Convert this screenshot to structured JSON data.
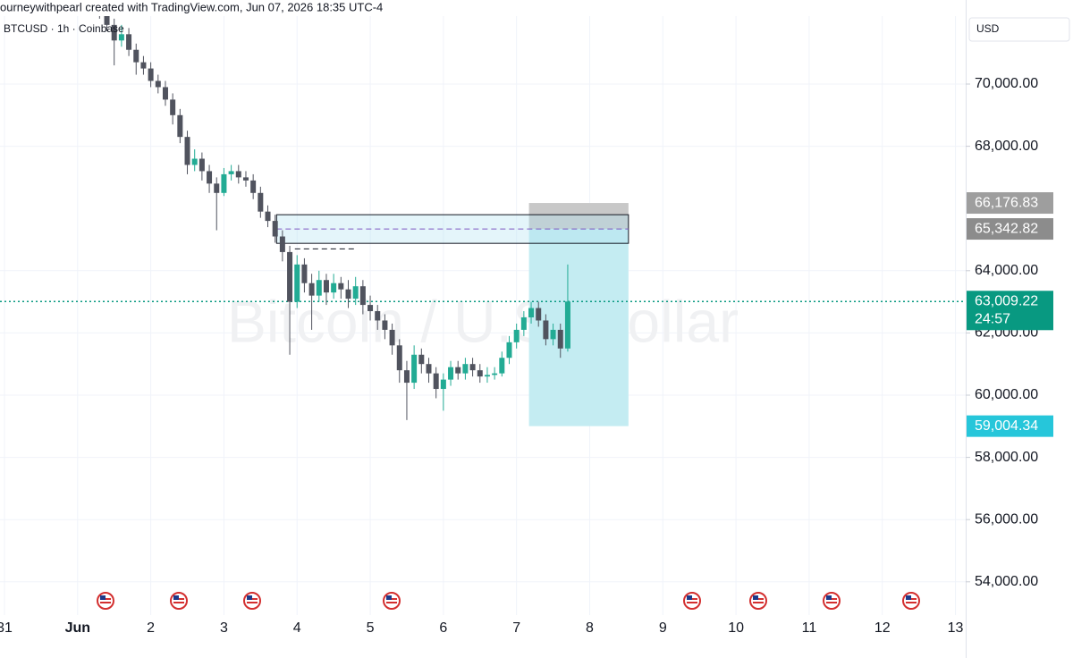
{
  "chart_data": {
    "type": "candlestick",
    "header": "ourneywithpearl created with TradingView.com, Jun 07, 2026 18:35 UTC-4",
    "title": "BTCUSD · 1h · Coinbase",
    "watermark": "Bitcoin / U.S. Dollar",
    "currency": "USD",
    "up_color": "#22ab94",
    "down_color": "#50535e",
    "grid": true,
    "xlim": [
      -0.061,
      13.14
    ],
    "ylim": [
      52931,
      72701
    ],
    "xticks": [
      {
        "value": 0,
        "label": "31"
      },
      {
        "value": 1,
        "label": "Jun"
      },
      2,
      3,
      4,
      5,
      6,
      7,
      8,
      9,
      10,
      11,
      12,
      13
    ],
    "yticks": [
      {
        "value": 54000,
        "label": "54,000.00"
      },
      {
        "value": 56000,
        "label": "56,000.00"
      },
      {
        "value": 58000,
        "label": "58,000.00"
      },
      {
        "value": 60000,
        "label": "60,000.00"
      },
      {
        "value": 62000,
        "label": "62,000.00"
      },
      {
        "value": 64000,
        "label": "64,000.00"
      },
      {
        "value": 68000,
        "label": "68,000.00"
      },
      {
        "value": 70000,
        "label": "70,000.00"
      }
    ],
    "x": [
      1.3,
      1.4,
      1.5,
      1.6,
      1.7,
      1.8,
      1.9,
      2.0,
      2.1,
      2.2,
      2.3,
      2.4,
      2.5,
      2.6,
      2.7,
      2.8,
      2.9,
      3.0,
      3.1,
      3.2,
      3.3,
      3.4,
      3.5,
      3.6,
      3.7,
      3.8,
      3.9,
      4.0,
      4.1,
      4.2,
      4.3,
      4.4,
      4.5,
      4.6,
      4.7,
      4.8,
      4.9,
      5.0,
      5.1,
      5.2,
      5.3,
      5.4,
      5.5,
      5.6,
      5.7,
      5.8,
      5.9,
      6.0,
      6.1,
      6.2,
      6.3,
      6.4,
      6.5,
      6.6,
      6.7,
      6.8,
      6.9,
      7.0,
      7.1,
      7.2,
      7.3,
      7.4,
      7.5,
      7.6,
      7.7
    ],
    "ohlc": [
      [
        72600,
        72700,
        72100,
        72300
      ],
      [
        72300,
        72500,
        71700,
        71900
      ],
      [
        71900,
        72100,
        70600,
        71400
      ],
      [
        71400,
        71900,
        71200,
        71600
      ],
      [
        71600,
        71800,
        70900,
        71100
      ],
      [
        71100,
        71300,
        70300,
        70700
      ],
      [
        70700,
        70900,
        70300,
        70500
      ],
      [
        70500,
        70700,
        69900,
        70100
      ],
      [
        70100,
        70300,
        69700,
        69900
      ],
      [
        69900,
        70100,
        69300,
        69500
      ],
      [
        69500,
        69700,
        68700,
        69000
      ],
      [
        69000,
        69200,
        68100,
        68300
      ],
      [
        68300,
        68500,
        67100,
        67400
      ],
      [
        67400,
        67900,
        67200,
        67600
      ],
      [
        67600,
        67800,
        66900,
        67200
      ],
      [
        67200,
        67400,
        66500,
        66800
      ],
      [
        66800,
        67000,
        65300,
        66500
      ],
      [
        66500,
        67300,
        66400,
        67100
      ],
      [
        67100,
        67400,
        66900,
        67200
      ],
      [
        67200,
        67400,
        66800,
        67000
      ],
      [
        67000,
        67200,
        66700,
        66900
      ],
      [
        66900,
        67100,
        66300,
        66500
      ],
      [
        66500,
        66700,
        65700,
        65900
      ],
      [
        65900,
        66100,
        65400,
        65600
      ],
      [
        65600,
        65800,
        64900,
        65100
      ],
      [
        65100,
        65300,
        64300,
        64600
      ],
      [
        64600,
        64800,
        61300,
        63000
      ],
      [
        63000,
        64500,
        62800,
        64200
      ],
      [
        64200,
        64400,
        63300,
        63600
      ],
      [
        63600,
        63900,
        62100,
        63200
      ],
      [
        63200,
        64000,
        63000,
        63700
      ],
      [
        63700,
        63900,
        62900,
        63300
      ],
      [
        63300,
        63900,
        63100,
        63600
      ],
      [
        63600,
        63800,
        63100,
        63400
      ],
      [
        63400,
        63700,
        62800,
        63100
      ],
      [
        63100,
        63800,
        62900,
        63500
      ],
      [
        63500,
        63700,
        62600,
        62900
      ],
      [
        62900,
        63200,
        62400,
        62700
      ],
      [
        62700,
        62900,
        62100,
        62400
      ],
      [
        62400,
        62600,
        61800,
        62100
      ],
      [
        62100,
        62300,
        61300,
        61600
      ],
      [
        61600,
        61800,
        60400,
        60800
      ],
      [
        60800,
        61100,
        59200,
        60400
      ],
      [
        60400,
        61600,
        60200,
        61300
      ],
      [
        61300,
        61500,
        60700,
        61000
      ],
      [
        61000,
        61200,
        60400,
        60700
      ],
      [
        60700,
        60900,
        59900,
        60200
      ],
      [
        60200,
        60700,
        59500,
        60500
      ],
      [
        60500,
        61100,
        60300,
        60900
      ],
      [
        60900,
        61100,
        60500,
        60700
      ],
      [
        60700,
        61200,
        60500,
        61000
      ],
      [
        61000,
        61200,
        60600,
        60800
      ],
      [
        60800,
        61000,
        60400,
        60600
      ],
      [
        60600,
        60900,
        60400,
        60650
      ],
      [
        60650,
        60900,
        60500,
        60700
      ],
      [
        60700,
        61400,
        60600,
        61200
      ],
      [
        61200,
        61900,
        61000,
        61700
      ],
      [
        61700,
        62300,
        61500,
        62100
      ],
      [
        62100,
        62700,
        61900,
        62500
      ],
      [
        62500,
        63000,
        62300,
        62800
      ],
      [
        62800,
        63000,
        62200,
        62400
      ],
      [
        62400,
        62600,
        61600,
        61800
      ],
      [
        61800,
        62300,
        61600,
        62100
      ],
      [
        62100,
        62300,
        61200,
        61500
      ],
      [
        61500,
        64200,
        61400,
        63009.22
      ]
    ],
    "levels": [
      {
        "value": 66176.83,
        "label": "66,176.83",
        "color": "#9e9e9e"
      },
      {
        "value": 65342.82,
        "label": "65,342.82",
        "color": "#8c8c8c"
      },
      {
        "value": 63009.22,
        "label": "63,009.22",
        "color": "#089981",
        "countdown": "24:57"
      },
      {
        "value": 59004.34,
        "label": "59,004.34",
        "color": "#26c6da"
      }
    ],
    "zone": {
      "x": [
        3.72,
        8.53
      ],
      "y": [
        64880,
        65800
      ]
    },
    "position_tool": {
      "x": [
        7.17,
        8.53
      ]
    },
    "swing_line": {
      "x": [
        3.97,
        4.8
      ],
      "value": 64700
    }
  }
}
